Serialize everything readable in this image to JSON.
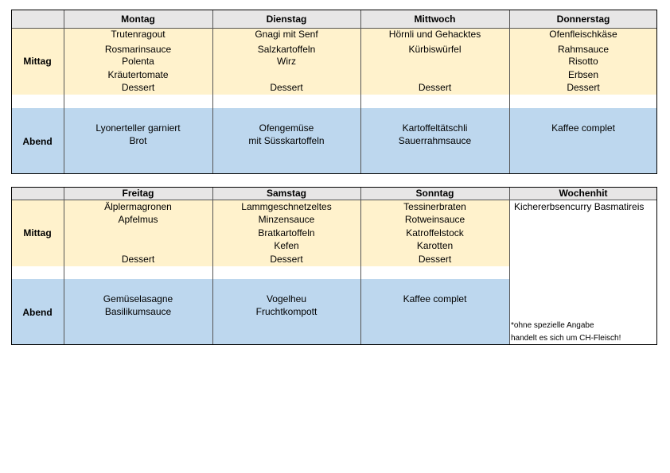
{
  "tables": [
    {
      "headers": [
        "Montag",
        "Dienstag",
        "Mittwoch",
        "Donnerstag"
      ],
      "row_labels": [
        "Mittag",
        "Abend"
      ],
      "mittag": [
        {
          "items": [
            "Trutenragout",
            "Rosmarinsauce",
            "Polenta",
            "Kräutertomate"
          ],
          "dessert": "Dessert"
        },
        {
          "items": [
            "Gnagi mit Senf",
            "Salzkartoffeln",
            "Wirz"
          ],
          "dessert": "Dessert"
        },
        {
          "items": [
            "Hörnli und Gehacktes",
            "Kürbiswürfel"
          ],
          "dessert": "Dessert"
        },
        {
          "items": [
            "Ofenfleischkäse",
            "Rahmsauce",
            "Risotto",
            "Erbsen"
          ],
          "dessert": "Dessert"
        }
      ],
      "abend": [
        [
          "Lyonerteller garniert",
          "Brot"
        ],
        [
          "Ofengemüse",
          "mit Süsskartoffeln"
        ],
        [
          "Kartoffeltätschli",
          "Sauerrahmsauce"
        ],
        [
          "Kaffee complet"
        ]
      ]
    },
    {
      "headers": [
        "Freitag",
        "Samstag",
        "Sonntag"
      ],
      "row_labels": [
        "Mittag",
        "Abend"
      ],
      "mittag": [
        {
          "items": [
            "Älplermagronen",
            "Apfelmus"
          ],
          "dessert": "Dessert"
        },
        {
          "items": [
            "Lammgeschnetzeltes",
            "Minzensauce",
            "Bratkartoffeln",
            "Kefen"
          ],
          "dessert": "Dessert"
        },
        {
          "items": [
            "Tessinerbraten",
            "Rotweinsauce",
            "Katroffelstock",
            "Karotten"
          ],
          "dessert": "Dessert"
        }
      ],
      "abend": [
        [
          "Gemüselasagne",
          "Basilikumsauce"
        ],
        [
          "Vogelheu",
          "Fruchtkompott"
        ],
        [
          "Kaffee complet"
        ]
      ],
      "wochenhit": {
        "header": "Wochenhit",
        "items": [
          "Kichererbsencurry Basmatireis"
        ],
        "note": [
          "*ohne spezielle Angabe",
          "handelt es sich um CH-Fleisch!"
        ]
      }
    }
  ]
}
